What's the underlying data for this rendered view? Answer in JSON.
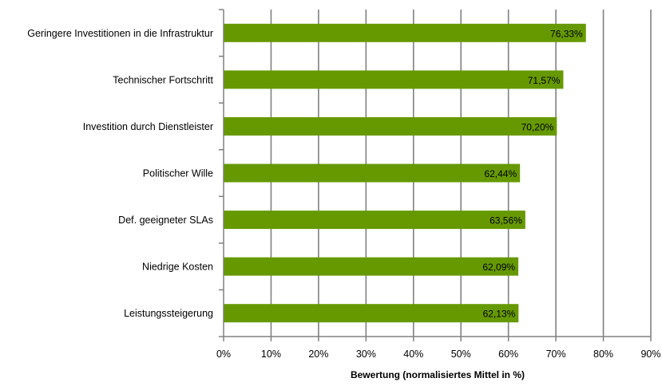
{
  "chart_data": {
    "type": "bar",
    "orientation": "horizontal",
    "categories": [
      "Geringere Investitionen in die Infrastruktur",
      "Technischer Fortschritt",
      "Investition durch Dienstleister",
      "Politischer Wille",
      "Def. geeigneter SLAs",
      "Niedrige Kosten",
      "Leistungssteigerung"
    ],
    "values": [
      76.33,
      71.57,
      70.2,
      62.44,
      63.56,
      62.09,
      62.13
    ],
    "data_labels": [
      "76,33%",
      "71,57%",
      "70,20%",
      "62,44%",
      "63,56%",
      "62,09%",
      "62,13%"
    ],
    "xlabel": "Bewertung (normalisiertes Mittel in %)",
    "ylabel": "",
    "xlim": [
      0,
      90
    ],
    "xticks": [
      0,
      10,
      20,
      30,
      40,
      50,
      60,
      70,
      80,
      90
    ],
    "xtick_labels": [
      "0%",
      "10%",
      "20%",
      "30%",
      "40%",
      "50%",
      "60%",
      "70%",
      "80%",
      "90%"
    ],
    "grid": "vertical",
    "legend": "none",
    "colors": {
      "bar": "#669900",
      "grid": "#808080",
      "axis": "#808080"
    }
  }
}
